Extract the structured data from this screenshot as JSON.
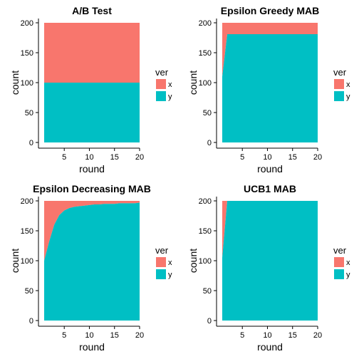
{
  "chart_data": [
    {
      "type": "area",
      "title": "A/B Test",
      "xlabel": "round",
      "ylabel": "count",
      "xlim": [
        1,
        20
      ],
      "ylim": [
        0,
        200
      ],
      "xticks": [
        5,
        10,
        15,
        20
      ],
      "yticks": [
        0,
        50,
        100,
        150,
        200
      ],
      "legend_title": "ver",
      "grid": false,
      "legend_position": "right",
      "x": [
        1,
        2,
        3,
        4,
        5,
        6,
        7,
        8,
        9,
        10,
        11,
        12,
        13,
        14,
        15,
        16,
        17,
        18,
        19,
        20
      ],
      "series": [
        {
          "name": "x",
          "color": "#F8766D",
          "values": [
            100,
            100,
            100,
            100,
            100,
            100,
            100,
            100,
            100,
            100,
            100,
            100,
            100,
            100,
            100,
            100,
            100,
            100,
            100,
            100
          ]
        },
        {
          "name": "y",
          "color": "#00BFC4",
          "values": [
            100,
            100,
            100,
            100,
            100,
            100,
            100,
            100,
            100,
            100,
            100,
            100,
            100,
            100,
            100,
            100,
            100,
            100,
            100,
            100
          ]
        }
      ]
    },
    {
      "type": "area",
      "title": "Epsilon Greedy MAB",
      "xlabel": "round",
      "ylabel": "count",
      "xlim": [
        1,
        20
      ],
      "ylim": [
        0,
        200
      ],
      "xticks": [
        5,
        10,
        15,
        20
      ],
      "yticks": [
        0,
        50,
        100,
        150,
        200
      ],
      "legend_title": "ver",
      "grid": false,
      "legend_position": "right",
      "x": [
        1,
        2,
        3,
        4,
        5,
        6,
        7,
        8,
        9,
        10,
        11,
        12,
        13,
        14,
        15,
        16,
        17,
        18,
        19,
        20
      ],
      "series": [
        {
          "name": "x",
          "color": "#F8766D",
          "values": [
            90,
            19,
            19,
            19,
            19,
            19,
            19,
            19,
            19,
            19,
            19,
            19,
            19,
            19,
            19,
            19,
            19,
            19,
            19,
            19
          ]
        },
        {
          "name": "y",
          "color": "#00BFC4",
          "values": [
            110,
            181,
            181,
            181,
            181,
            181,
            181,
            181,
            181,
            181,
            181,
            181,
            181,
            181,
            181,
            181,
            181,
            181,
            181,
            181
          ]
        }
      ]
    },
    {
      "type": "area",
      "title": "Epsilon Decreasing MAB",
      "xlabel": "round",
      "ylabel": "count",
      "xlim": [
        1,
        20
      ],
      "ylim": [
        0,
        200
      ],
      "xticks": [
        5,
        10,
        15,
        20
      ],
      "yticks": [
        0,
        50,
        100,
        150,
        200
      ],
      "legend_title": "ver",
      "grid": false,
      "legend_position": "right",
      "x": [
        1,
        2,
        3,
        4,
        5,
        6,
        7,
        8,
        9,
        10,
        11,
        12,
        13,
        14,
        15,
        16,
        17,
        18,
        19,
        20
      ],
      "series": [
        {
          "name": "x",
          "color": "#F8766D",
          "values": [
            100,
            68,
            40,
            24,
            16,
            12,
            10,
            9,
            8,
            7,
            6,
            6,
            5,
            5,
            5,
            4,
            4,
            4,
            4,
            3
          ]
        },
        {
          "name": "y",
          "color": "#00BFC4",
          "values": [
            100,
            132,
            160,
            176,
            184,
            188,
            190,
            191,
            192,
            193,
            194,
            194,
            195,
            195,
            195,
            196,
            196,
            196,
            196,
            197
          ]
        }
      ]
    },
    {
      "type": "area",
      "title": "UCB1 MAB",
      "xlabel": "round",
      "ylabel": "count",
      "xlim": [
        1,
        20
      ],
      "ylim": [
        0,
        200
      ],
      "xticks": [
        5,
        10,
        15,
        20
      ],
      "yticks": [
        0,
        50,
        100,
        150,
        200
      ],
      "legend_title": "ver",
      "grid": false,
      "legend_position": "right",
      "x": [
        1,
        2,
        3,
        4,
        5,
        6,
        7,
        8,
        9,
        10,
        11,
        12,
        13,
        14,
        15,
        16,
        17,
        18,
        19,
        20
      ],
      "series": [
        {
          "name": "x",
          "color": "#F8766D",
          "values": [
            95,
            0,
            0,
            0,
            0,
            0,
            0,
            0,
            0,
            0,
            0,
            0,
            0,
            0,
            0,
            0,
            0,
            0,
            0,
            0
          ]
        },
        {
          "name": "y",
          "color": "#00BFC4",
          "values": [
            105,
            200,
            200,
            200,
            200,
            200,
            200,
            200,
            200,
            200,
            200,
            200,
            200,
            200,
            200,
            200,
            200,
            200,
            200,
            200
          ]
        }
      ]
    }
  ]
}
